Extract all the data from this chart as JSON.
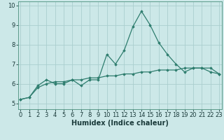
{
  "xlabel": "Humidex (Indice chaleur)",
  "x": [
    0,
    1,
    2,
    3,
    4,
    5,
    6,
    7,
    8,
    9,
    10,
    11,
    12,
    13,
    14,
    15,
    16,
    17,
    18,
    19,
    20,
    21,
    22,
    23
  ],
  "line1_y": [
    5.2,
    5.3,
    5.9,
    6.2,
    6.0,
    6.0,
    6.2,
    5.9,
    6.2,
    6.2,
    7.5,
    7.0,
    7.7,
    8.9,
    9.7,
    9.0,
    8.1,
    7.5,
    7.0,
    6.6,
    6.8,
    6.8,
    6.6,
    6.5
  ],
  "line2_y": [
    5.2,
    5.3,
    5.8,
    6.0,
    6.1,
    6.1,
    6.2,
    6.2,
    6.3,
    6.3,
    6.4,
    6.4,
    6.5,
    6.5,
    6.6,
    6.6,
    6.7,
    6.7,
    6.7,
    6.8,
    6.8,
    6.8,
    6.8,
    6.5
  ],
  "line_color": "#2e7d6e",
  "bg_color": "#cce8e8",
  "grid_color": "#aacece",
  "ylim": [
    4.7,
    10.2
  ],
  "yticks": [
    5,
    6,
    7,
    8,
    9,
    10
  ],
  "xlim": [
    -0.3,
    23.3
  ],
  "xticks": [
    0,
    1,
    2,
    3,
    4,
    5,
    6,
    7,
    8,
    9,
    10,
    11,
    12,
    13,
    14,
    15,
    16,
    17,
    18,
    19,
    20,
    21,
    22,
    23
  ],
  "marker": "D",
  "marker_size": 1.8,
  "linewidth": 0.9,
  "tick_labelsize": 6,
  "xlabel_fontsize": 7
}
